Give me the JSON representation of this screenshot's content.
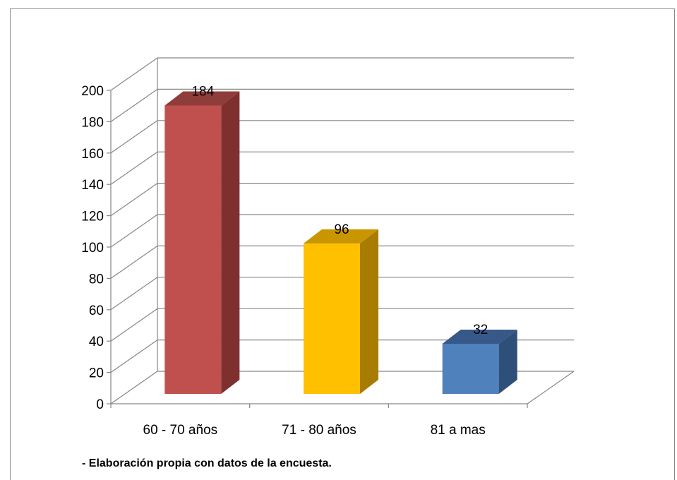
{
  "chart_data": {
    "type": "bar",
    "categories": [
      "60 - 70 años",
      "71 - 80 años",
      "81 a mas"
    ],
    "values": [
      184,
      96,
      32
    ],
    "data_labels": [
      "184",
      "96",
      "32"
    ],
    "colors": [
      {
        "front": "#c0504d",
        "side": "#7f2f2e",
        "top": "#8f3d3b"
      },
      {
        "front": "#ffc000",
        "side": "#a87c00",
        "top": "#c99500"
      },
      {
        "front": "#4f81bd",
        "side": "#2e4f78",
        "top": "#36598a"
      }
    ],
    "ylim": [
      0,
      200
    ],
    "yticks": [
      0,
      20,
      40,
      60,
      80,
      100,
      120,
      140,
      160,
      180,
      200
    ],
    "grid": true,
    "legend": "none",
    "title": "",
    "xlabel": "",
    "ylabel": ""
  },
  "source_note": "- Elaboración propia con datos de la encuesta."
}
